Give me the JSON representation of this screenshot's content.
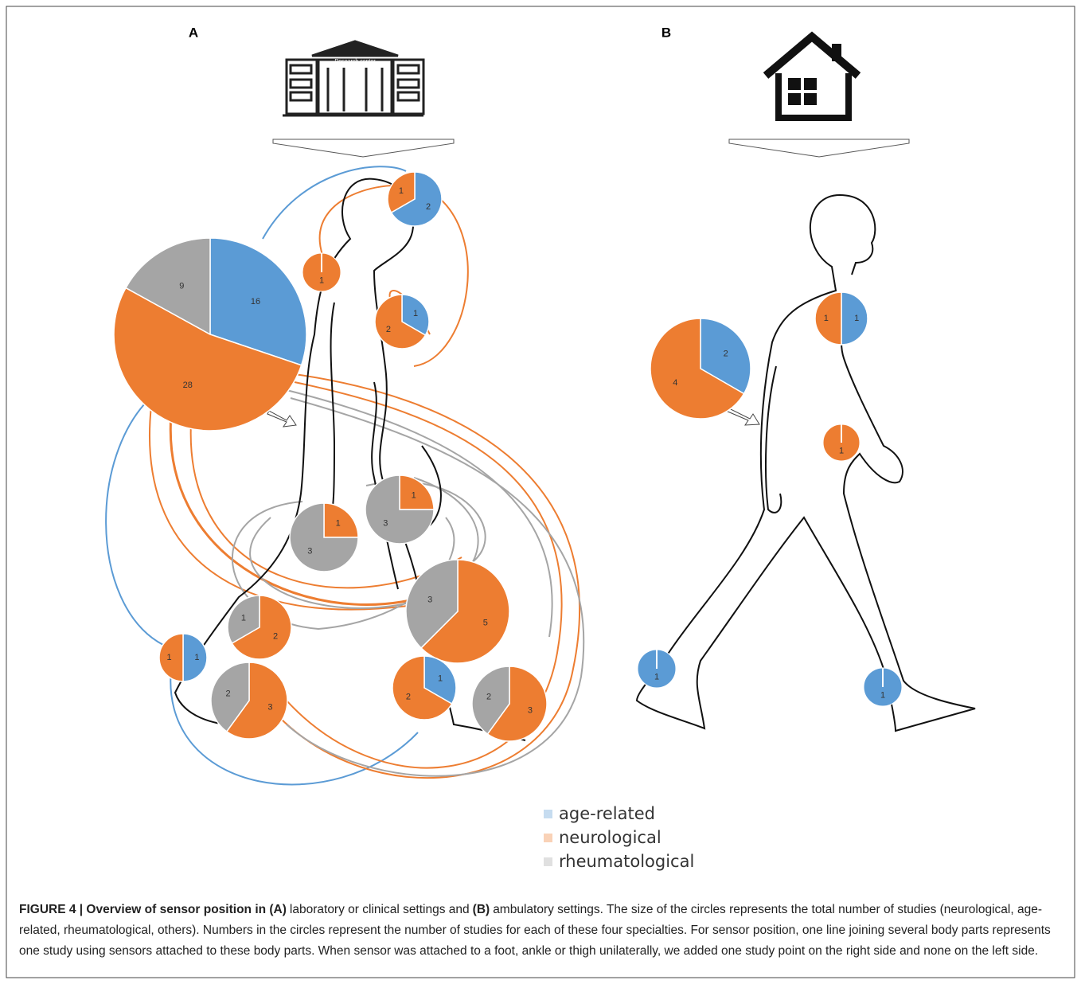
{
  "legend": [
    {
      "name": "age-related",
      "color": "#5b9bd5"
    },
    {
      "name": "neurological",
      "color": "#ed7d31"
    },
    {
      "name": "rheumatological",
      "color": "#a5a5a5"
    }
  ],
  "icon_label": "Research center",
  "chart_data": [
    {
      "type": "pie",
      "title": "A",
      "pies": [
        {
          "values": [
            2,
            1,
            null
          ]
        },
        {
          "values": [
            null,
            1,
            null
          ]
        },
        {
          "values": [
            16,
            28,
            9
          ]
        },
        {
          "values": [
            1,
            2,
            null
          ]
        },
        {
          "values": [
            null,
            1,
            3
          ]
        },
        {
          "values": [
            null,
            1,
            3
          ]
        },
        {
          "values": [
            null,
            5,
            3
          ]
        },
        {
          "values": [
            null,
            2,
            1
          ]
        },
        {
          "values": [
            1,
            1,
            null
          ]
        },
        {
          "values": [
            null,
            3,
            2
          ]
        },
        {
          "values": [
            1,
            2,
            null
          ]
        },
        {
          "values": [
            null,
            3,
            2
          ]
        }
      ]
    },
    {
      "type": "pie",
      "title": "B",
      "pies": [
        {
          "values": [
            2,
            4,
            null
          ]
        },
        {
          "values": [
            1,
            1,
            null
          ]
        },
        {
          "values": [
            null,
            1,
            null
          ]
        },
        {
          "values": [
            1,
            null,
            null
          ]
        },
        {
          "values": [
            1,
            null,
            null
          ]
        }
      ]
    }
  ],
  "caption": [
    {
      "text": "FIGURE 4 | Overview of sensor position in (A)",
      "bold": true
    },
    {
      "text": "laboratory or clinical settings and",
      "bold": false
    },
    {
      "text": "(B)",
      "bold": true
    },
    {
      "text": "ambulatory settings. The size of the circles represents the total number of studies (neurological, age-related, rheumatological, others). Numbers in the circles represent the number of studies for each of these four specialties. For sensor position, one line joining several body parts represents one study using sensors attached to these body parts. When sensor was attached to a foot, ankle or thigh unilaterally, we added one study point on the right side and none on the left side.",
      "bold": false
    }
  ]
}
